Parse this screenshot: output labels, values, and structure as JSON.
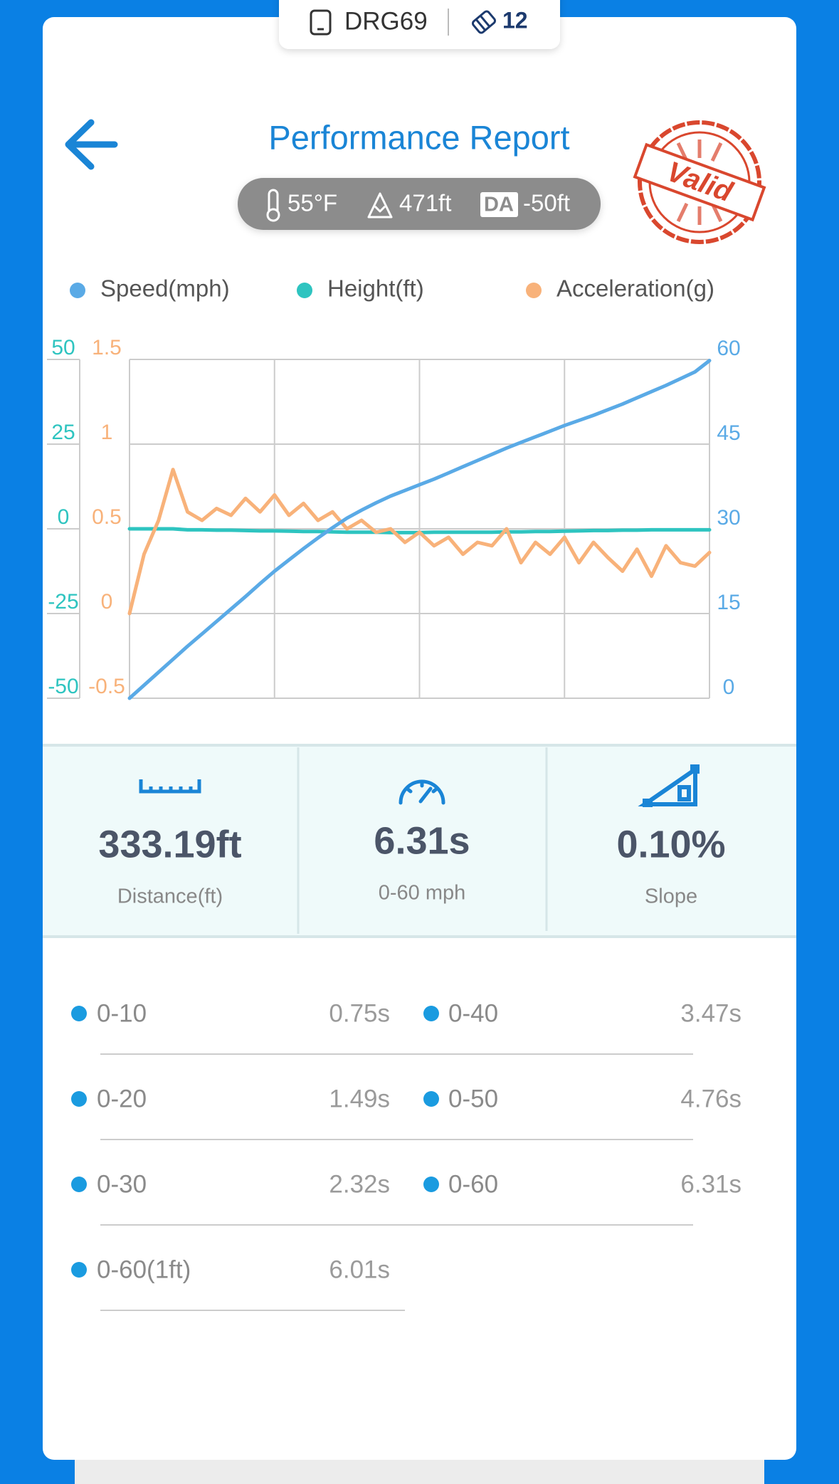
{
  "header": {
    "device": "DRG69",
    "count": "12",
    "title": "Performance Report",
    "temperature": "55°F",
    "altitude": "471ft",
    "da_label": "DA",
    "density_altitude": "-50ft",
    "stamp": "Valid"
  },
  "chart_data": {
    "type": "line",
    "categories": [
      null,
      null,
      null,
      null,
      null,
      null,
      null,
      null,
      null,
      null,
      null,
      null,
      null,
      null,
      null,
      null,
      null,
      null,
      null,
      null,
      null,
      null,
      null,
      null,
      null,
      null,
      null,
      null,
      null,
      null,
      null,
      null,
      null,
      null,
      null,
      null,
      null,
      null,
      null,
      null,
      null
    ],
    "grid": true,
    "series": [
      {
        "name": "Speed(mph)",
        "color": "#5aaae6",
        "axis_side": "right",
        "ylim": [
          0,
          60
        ],
        "yticks": [
          0,
          15,
          30,
          45,
          60
        ],
        "values": [
          0,
          2.3,
          4.6,
          6.9,
          9.2,
          11.4,
          13.6,
          15.8,
          18,
          20.3,
          22.5,
          24.5,
          26.5,
          28.4,
          30.2,
          31.9,
          33.3,
          34.6,
          35.8,
          36.8,
          37.8,
          38.8,
          39.9,
          41,
          42.1,
          43.2,
          44.3,
          45.3,
          46.3,
          47.3,
          48.3,
          49.2,
          50.1,
          51.1,
          52.1,
          53.2,
          54.3,
          55.4,
          56.6,
          57.8,
          59.8
        ]
      },
      {
        "name": "Height(ft)",
        "color": "#2ec4c0",
        "axis_side": "left",
        "ylim": [
          -50,
          50
        ],
        "yticks": [
          -50,
          -25,
          0,
          25,
          50
        ],
        "values": [
          0,
          0,
          0,
          0,
          -0.3,
          -0.3,
          -0.4,
          -0.4,
          -0.5,
          -0.6,
          -0.6,
          -0.7,
          -0.8,
          -0.8,
          -0.9,
          -1,
          -1,
          -1,
          -1.1,
          -1.1,
          -1.1,
          -1,
          -1,
          -1,
          -1,
          -1,
          -0.9,
          -0.9,
          -0.8,
          -0.8,
          -0.7,
          -0.6,
          -0.5,
          -0.5,
          -0.4,
          -0.4,
          -0.3,
          -0.3,
          -0.3,
          -0.3,
          -0.3
        ]
      },
      {
        "name": "Acceleration(g)",
        "color": "#f8b27a",
        "axis_side": "left",
        "ylim": [
          -0.5,
          1.5
        ],
        "yticks": [
          -0.5,
          0,
          0.5,
          1,
          1.5
        ],
        "values": [
          0,
          0.35,
          0.55,
          0.85,
          0.6,
          0.55,
          0.62,
          0.58,
          0.68,
          0.6,
          0.7,
          0.58,
          0.65,
          0.55,
          0.6,
          0.5,
          0.55,
          0.48,
          0.5,
          0.42,
          0.48,
          0.4,
          0.45,
          0.35,
          0.42,
          0.4,
          0.5,
          0.3,
          0.42,
          0.35,
          0.45,
          0.3,
          0.42,
          0.33,
          0.25,
          0.38,
          0.22,
          0.4,
          0.3,
          0.28,
          0.36
        ]
      }
    ]
  },
  "summary": {
    "items": [
      {
        "value": "333.19ft",
        "label": "Distance(ft)"
      },
      {
        "value": "6.31s",
        "label": "0-60 mph"
      },
      {
        "value": "0.10%",
        "label": "Slope"
      }
    ]
  },
  "splits": {
    "items": [
      {
        "label": "0-10",
        "time": "0.75s"
      },
      {
        "label": "0-40",
        "time": "3.47s"
      },
      {
        "label": "0-20",
        "time": "1.49s"
      },
      {
        "label": "0-50",
        "time": "4.76s"
      },
      {
        "label": "0-30",
        "time": "2.32s"
      },
      {
        "label": "0-60",
        "time": "6.31s"
      },
      {
        "label": "0-60(1ft)",
        "time": "6.01s"
      }
    ]
  }
}
